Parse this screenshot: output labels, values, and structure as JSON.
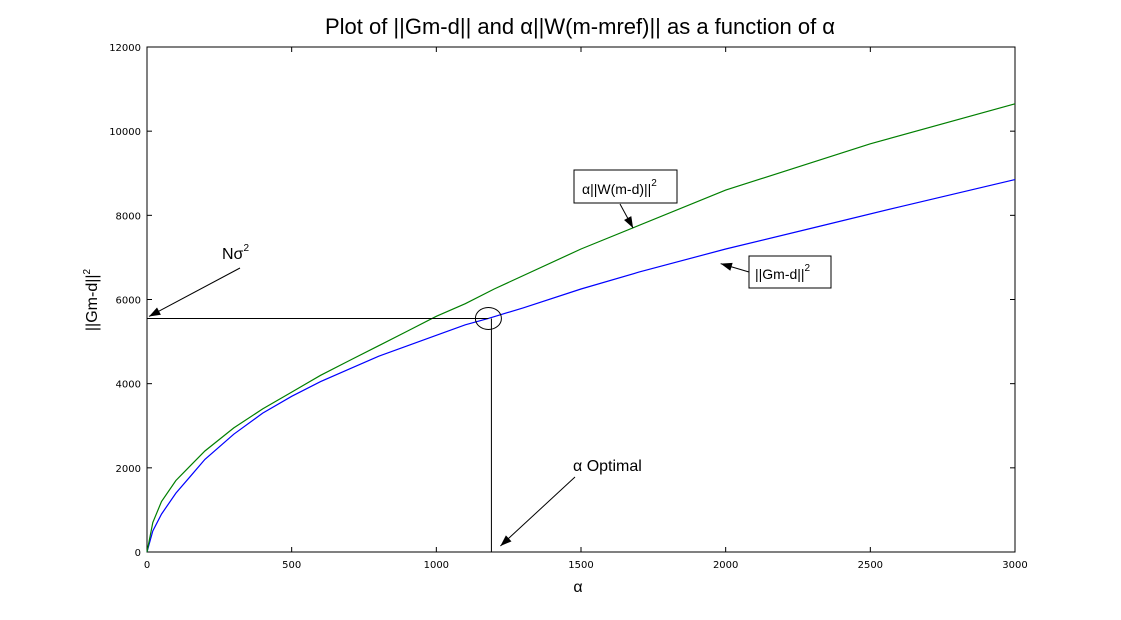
{
  "chart_data": {
    "type": "line",
    "title": "Plot of ||Gm-d|| and α||W(m-mref)|| as a function of α",
    "xlabel": "α",
    "ylabel": "||Gm-d||",
    "ylabel_sup": "2",
    "xlim": [
      0,
      3000
    ],
    "ylim": [
      0,
      12000
    ],
    "xticks": [
      "0",
      "500",
      "1000",
      "1500",
      "2000",
      "2500",
      "3000"
    ],
    "xtick_values": [
      0,
      500,
      1000,
      1500,
      2000,
      2500,
      3000
    ],
    "yticks": [
      "0",
      "2000",
      "4000",
      "6000",
      "8000",
      "10000",
      "12000"
    ],
    "ytick_values": [
      0,
      2000,
      4000,
      6000,
      8000,
      10000,
      12000
    ],
    "grid": false,
    "series": [
      {
        "color": "#0000ff",
        "x": [
          0,
          20,
          50,
          100,
          150,
          200,
          300,
          400,
          500,
          600,
          700,
          800,
          900,
          1000,
          1100,
          1180,
          1300,
          1500,
          1700,
          2000,
          2300,
          2600,
          3000
        ],
        "y": [
          0,
          500,
          900,
          1400,
          1800,
          2200,
          2800,
          3300,
          3700,
          4050,
          4350,
          4650,
          4900,
          5150,
          5400,
          5550,
          5800,
          6250,
          6650,
          7200,
          7700,
          8200,
          8850
        ]
      },
      {
        "color": "#007f00",
        "x": [
          0,
          20,
          50,
          100,
          150,
          200,
          300,
          400,
          500,
          600,
          700,
          800,
          900,
          1000,
          1100,
          1200,
          1500,
          2000,
          2500,
          3000
        ],
        "y": [
          0,
          700,
          1200,
          1700,
          2050,
          2400,
          2950,
          3400,
          3800,
          4200,
          4550,
          4900,
          5250,
          5600,
          5900,
          6250,
          7200,
          8600,
          9700,
          10650
        ]
      }
    ],
    "optimal": {
      "x": 1180,
      "y": 5550
    },
    "annotations": {
      "noise": {
        "text": "Nσ",
        "sup": "2",
        "target": [
          0,
          5550
        ]
      },
      "optimal": {
        "text": "α Optimal",
        "target": [
          1180,
          0
        ]
      },
      "green_label": {
        "text": "α||W(m-d)||",
        "sup": "2",
        "target": [
          1680,
          7700
        ]
      },
      "blue_label": {
        "text": "||Gm-d||",
        "sup": "2",
        "target": [
          2000,
          6900
        ]
      }
    }
  }
}
